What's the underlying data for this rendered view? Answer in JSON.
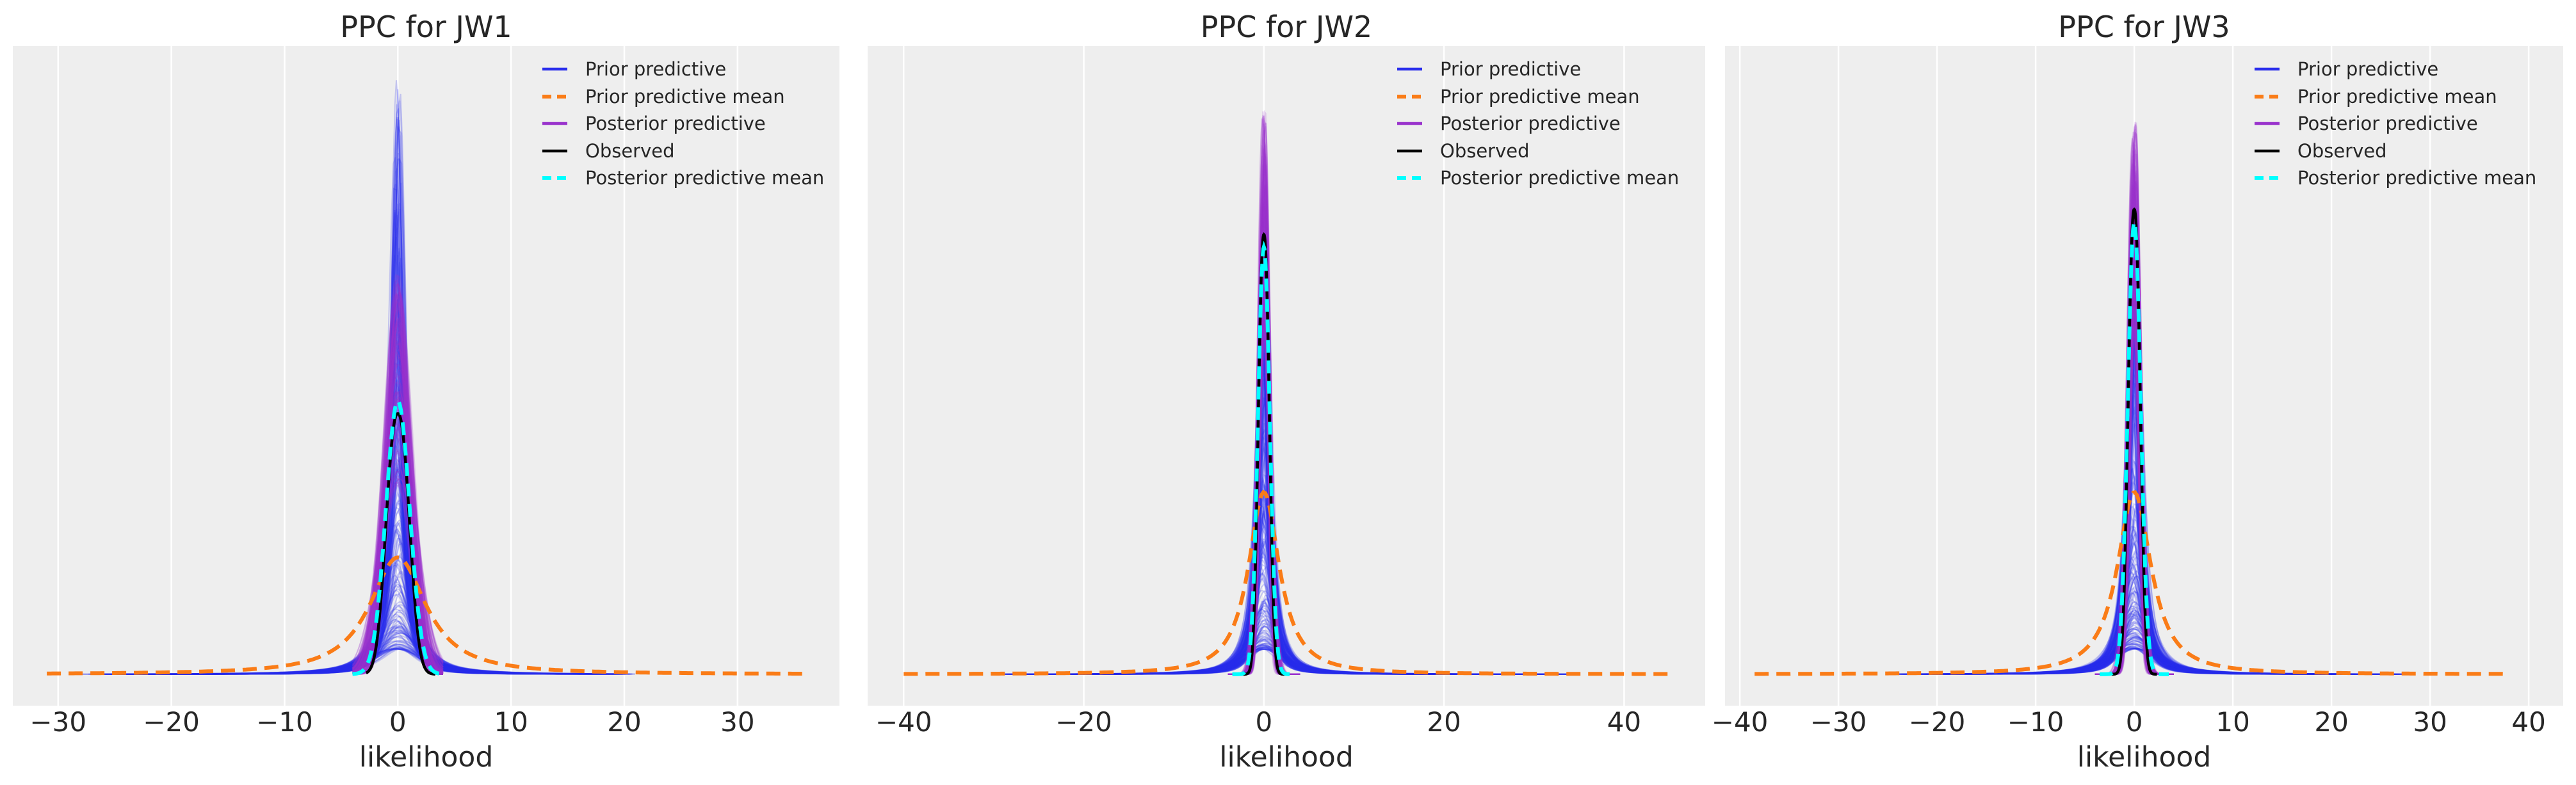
{
  "chart_data": [
    {
      "type": "line",
      "title": "PPC for JW1",
      "xlabel": "likelihood",
      "ylabel": "",
      "xlim": [
        -34,
        39
      ],
      "ylim": [
        -0.05,
        1.0
      ],
      "xticks": [
        -30,
        -20,
        -10,
        0,
        10,
        20,
        30
      ],
      "xtick_labels": [
        "−30",
        "−20",
        "−10",
        "0",
        "10",
        "20",
        "30"
      ],
      "grid": "vertical",
      "legend_position": "top-right",
      "series_params": {
        "prior_predictive": {
          "n_samples": 200,
          "max_peak": 0.95,
          "xrange": [
            -28,
            21
          ]
        },
        "prior_predictive_mean": {
          "peak": 0.186,
          "scale": 3.2,
          "xrange": [
            -31,
            36
          ]
        },
        "posterior_predictive": {
          "n_samples": 150,
          "peak_range": [
            0.3,
            0.64
          ],
          "scale": 1.2
        },
        "observed": {
          "peak": 0.415,
          "scale": 1.0,
          "xrange": [
            -2.8,
            3.3
          ]
        },
        "posterior_predictive_mean": {
          "peak": 0.435,
          "scale": 1.05,
          "xrange": [
            -4,
            4
          ]
        }
      }
    },
    {
      "type": "line",
      "title": "PPC for JW2",
      "xlabel": "likelihood",
      "ylabel": "",
      "xlim": [
        -44,
        49
      ],
      "ylim": [
        -0.05,
        1.0
      ],
      "xticks": [
        -40,
        -20,
        0,
        20,
        40
      ],
      "xtick_labels": [
        "−40",
        "−20",
        "0",
        "20",
        "40"
      ],
      "grid": "vertical",
      "legend_position": "top-right",
      "series_params": {
        "prior_predictive": {
          "n_samples": 200,
          "max_peak": 0.75,
          "xrange": [
            -30,
            35
          ]
        },
        "prior_predictive_mean": {
          "peak": 0.29,
          "scale": 2.2,
          "xrange": [
            -40,
            45
          ]
        },
        "posterior_predictive": {
          "n_samples": 150,
          "peak_range": [
            0.55,
            0.9
          ],
          "scale": 0.7
        },
        "observed": {
          "peak": 0.7,
          "scale": 0.6,
          "xrange": [
            -2.5,
            2.5
          ]
        },
        "posterior_predictive_mean": {
          "peak": 0.68,
          "scale": 0.65,
          "xrange": [
            -3.5,
            3.5
          ]
        }
      }
    },
    {
      "type": "line",
      "title": "PPC for JW3",
      "xlabel": "likelihood",
      "ylabel": "",
      "xlim": [
        -41.5,
        43.5
      ],
      "ylim": [
        -0.05,
        1.0
      ],
      "xticks": [
        -40,
        -30,
        -20,
        -10,
        0,
        10,
        20,
        30,
        40
      ],
      "xtick_labels": [
        "−40",
        "−30",
        "−20",
        "−10",
        "0",
        "10",
        "20",
        "30",
        "40"
      ],
      "grid": "vertical",
      "legend_position": "top-right",
      "series_params": {
        "prior_predictive": {
          "n_samples": 200,
          "max_peak": 0.75,
          "xrange": [
            -25,
            28
          ]
        },
        "prior_predictive_mean": {
          "peak": 0.29,
          "scale": 2.2,
          "xrange": [
            -38.5,
            37.5
          ]
        },
        "posterior_predictive": {
          "n_samples": 150,
          "peak_range": [
            0.55,
            0.88
          ],
          "scale": 0.7
        },
        "observed": {
          "peak": 0.74,
          "scale": 0.6,
          "xrange": [
            -2.3,
            2.3
          ]
        },
        "posterior_predictive_mean": {
          "peak": 0.72,
          "scale": 0.65,
          "xrange": [
            -3.5,
            3.5
          ]
        }
      }
    }
  ],
  "legend": {
    "items": [
      {
        "label": "Prior predictive",
        "color": "#2a2eec",
        "dashed": false
      },
      {
        "label": "Prior predictive mean",
        "color": "#fa7c17",
        "dashed": true
      },
      {
        "label": "Posterior predictive",
        "color": "#9932cc",
        "dashed": false
      },
      {
        "label": "Observed",
        "color": "#000000",
        "dashed": false
      },
      {
        "label": "Posterior predictive mean",
        "color": "#00ffff",
        "dashed": true
      }
    ]
  },
  "colors": {
    "axes_bg": "#eeeeee",
    "grid": "#ffffff"
  }
}
